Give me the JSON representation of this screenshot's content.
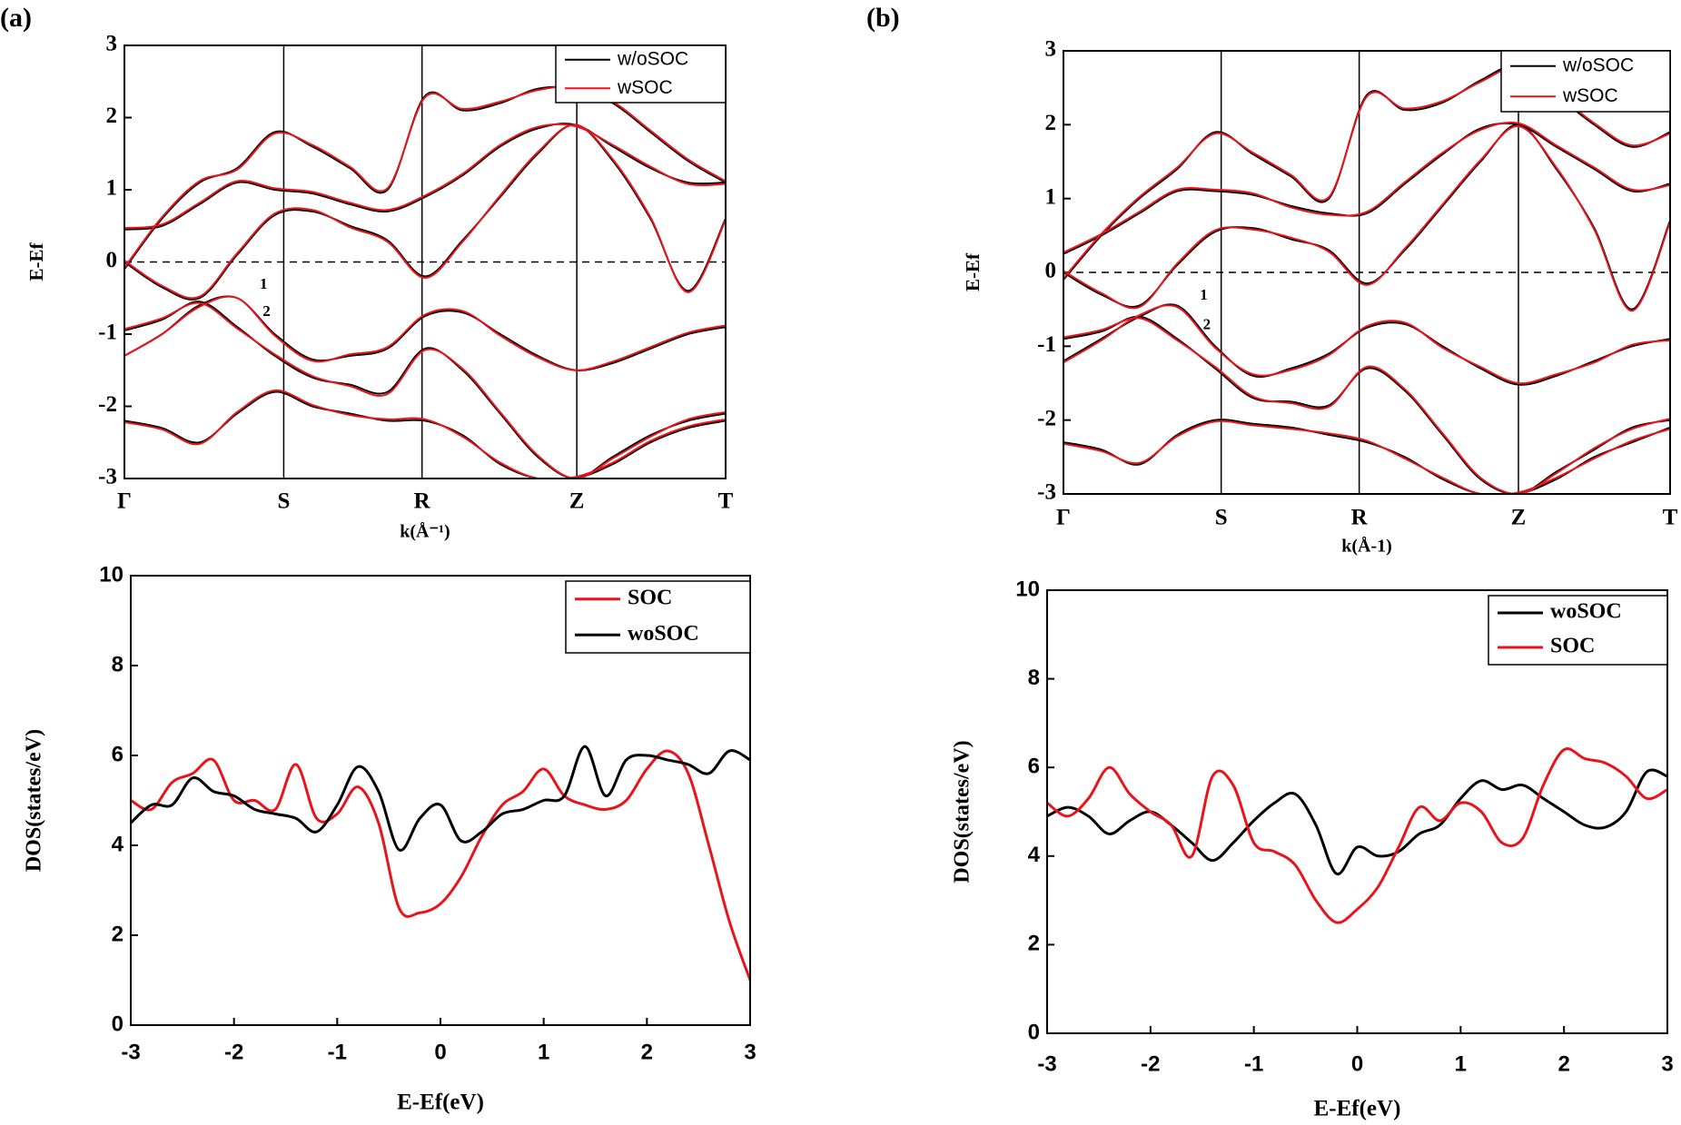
{
  "chart_data": [
    {
      "type": "band",
      "panel_label": "(a)",
      "xlabel": "k(Å⁻¹)",
      "ylabel": "E-Ef",
      "x": [
        0,
        0.25,
        0.5,
        0.75,
        1,
        1.25,
        1.5,
        1.75,
        2,
        2.25,
        2.5,
        2.75,
        3,
        3.25,
        3.5,
        3.75,
        4
      ],
      "xlim": [
        0,
        4
      ],
      "ylim": [
        -3,
        3
      ],
      "yticks": [
        -3,
        -2,
        -1,
        0,
        1,
        2,
        3
      ],
      "xticks": [
        {
          "value": 0,
          "label": "Γ"
        },
        {
          "value": 1.06,
          "label": "S"
        },
        {
          "value": 1.98,
          "label": "R"
        },
        {
          "value": 3.01,
          "label": "Z"
        },
        {
          "value": 4,
          "label": "T"
        }
      ],
      "grid": true,
      "reference_line": 0,
      "legend": "upper right",
      "annotations": [
        {
          "text": "1",
          "x": 0.9,
          "y": -0.32
        },
        {
          "text": "2",
          "x": 0.92,
          "y": -0.7
        }
      ],
      "series": [
        {
          "name": "w/oSOC",
          "color": "#000000",
          "bands": [
            [
              -1.3,
              -1.0,
              -0.6,
              -0.5,
              -1.0,
              -1.35,
              -1.3,
              -1.2,
              -0.75,
              -0.7,
              -1.0,
              -1.3,
              -1.5,
              -1.4,
              -1.2,
              -1.0,
              -0.9
            ],
            [
              -0.95,
              -0.8,
              -0.55,
              -0.9,
              -1.3,
              -1.6,
              -1.7,
              -1.8,
              -1.2,
              -1.5,
              -2.1,
              -2.7,
              -3.0,
              -2.7,
              -2.4,
              -2.2,
              -2.1
            ],
            [
              0.0,
              -0.35,
              -0.5,
              0.1,
              0.65,
              0.7,
              0.5,
              0.3,
              -0.2,
              0.3,
              0.9,
              1.5,
              1.9,
              1.4,
              0.6,
              -0.4,
              0.6
            ],
            [
              0.45,
              0.5,
              0.8,
              1.1,
              1.0,
              0.95,
              0.8,
              0.7,
              0.9,
              1.2,
              1.6,
              1.85,
              1.9,
              1.6,
              1.3,
              1.1,
              1.1
            ],
            [
              -0.1,
              0.6,
              1.1,
              1.3,
              1.8,
              1.6,
              1.3,
              1.0,
              2.3,
              2.1,
              2.2,
              2.4,
              2.4,
              2.2,
              1.8,
              1.4,
              1.1
            ],
            [
              -2.2,
              -2.3,
              -2.5,
              -2.1,
              -1.8,
              -2.0,
              -2.1,
              -2.2,
              -2.2,
              -2.4,
              -2.8,
              -3.0,
              -3.0,
              -2.8,
              -2.5,
              -2.3,
              -2.2
            ]
          ]
        },
        {
          "name": "wSOC",
          "color": "#e8141b",
          "bands": [
            [
              -1.3,
              -1.0,
              -0.62,
              -0.5,
              -1.02,
              -1.37,
              -1.28,
              -1.18,
              -0.73,
              -0.68,
              -1.02,
              -1.32,
              -1.5,
              -1.38,
              -1.18,
              -0.98,
              -0.88
            ],
            [
              -0.93,
              -0.78,
              -0.57,
              -0.92,
              -1.28,
              -1.58,
              -1.72,
              -1.83,
              -1.22,
              -1.48,
              -2.08,
              -2.68,
              -3.0,
              -2.72,
              -2.42,
              -2.18,
              -2.08
            ],
            [
              0.02,
              -0.33,
              -0.48,
              0.12,
              0.67,
              0.72,
              0.48,
              0.28,
              -0.22,
              0.28,
              0.92,
              1.52,
              1.9,
              1.42,
              0.62,
              -0.42,
              0.58
            ],
            [
              0.47,
              0.52,
              0.82,
              1.12,
              1.02,
              0.97,
              0.82,
              0.72,
              0.92,
              1.22,
              1.62,
              1.87,
              1.88,
              1.62,
              1.32,
              1.08,
              1.08
            ],
            [
              -0.08,
              0.62,
              1.12,
              1.28,
              1.78,
              1.62,
              1.32,
              1.02,
              2.28,
              2.12,
              2.22,
              2.38,
              2.42,
              2.22,
              1.82,
              1.42,
              1.12
            ],
            [
              -2.22,
              -2.32,
              -2.52,
              -2.08,
              -1.78,
              -1.98,
              -2.12,
              -2.18,
              -2.18,
              -2.42,
              -2.78,
              -3.0,
              -2.98,
              -2.78,
              -2.48,
              -2.28,
              -2.18
            ]
          ]
        }
      ]
    },
    {
      "type": "band",
      "panel_label": "(b)",
      "xlabel": "k(Å-1)",
      "ylabel": "E-Ef",
      "x": [
        0,
        0.25,
        0.5,
        0.75,
        1,
        1.25,
        1.5,
        1.75,
        2,
        2.25,
        2.5,
        2.75,
        3,
        3.25,
        3.5,
        3.75,
        4
      ],
      "xlim": [
        0,
        4
      ],
      "ylim": [
        -3,
        3
      ],
      "yticks": [
        -3,
        -2,
        -1,
        0,
        1,
        2,
        3
      ],
      "xticks": [
        {
          "value": 0,
          "label": "Γ"
        },
        {
          "value": 1.04,
          "label": "S"
        },
        {
          "value": 1.95,
          "label": "R"
        },
        {
          "value": 3.0,
          "label": "Z"
        },
        {
          "value": 4,
          "label": "T"
        }
      ],
      "grid": true,
      "reference_line": 0,
      "legend": "upper right",
      "annotations": [
        {
          "text": "1",
          "x": 0.9,
          "y": -0.32
        },
        {
          "text": "2",
          "x": 0.92,
          "y": -0.72
        }
      ],
      "series": [
        {
          "name": "w/oSOC",
          "color": "#000000",
          "bands": [
            [
              -1.2,
              -0.9,
              -0.6,
              -0.45,
              -1.0,
              -1.4,
              -1.3,
              -1.1,
              -0.75,
              -0.7,
              -1.0,
              -1.3,
              -1.52,
              -1.4,
              -1.2,
              -1.0,
              -0.9
            ],
            [
              -0.9,
              -0.8,
              -0.6,
              -0.9,
              -1.3,
              -1.7,
              -1.75,
              -1.8,
              -1.3,
              -1.6,
              -2.2,
              -2.8,
              -3.0,
              -2.7,
              -2.4,
              -2.1,
              -2.0
            ],
            [
              0.0,
              -0.3,
              -0.45,
              0.1,
              0.55,
              0.6,
              0.45,
              0.3,
              -0.15,
              0.3,
              0.9,
              1.5,
              2.0,
              1.4,
              0.6,
              -0.5,
              0.7
            ],
            [
              0.25,
              0.5,
              0.8,
              1.1,
              1.1,
              1.05,
              0.9,
              0.8,
              0.8,
              1.2,
              1.6,
              1.95,
              2.0,
              1.7,
              1.4,
              1.1,
              1.2
            ],
            [
              -0.1,
              0.5,
              1.0,
              1.4,
              1.9,
              1.6,
              1.3,
              1.0,
              2.4,
              2.2,
              2.3,
              2.6,
              2.8,
              2.4,
              2.0,
              1.7,
              1.9
            ],
            [
              -2.3,
              -2.4,
              -2.6,
              -2.2,
              -2.0,
              -2.05,
              -2.1,
              -2.2,
              -2.3,
              -2.5,
              -2.8,
              -3.0,
              -3.0,
              -2.8,
              -2.5,
              -2.3,
              -2.1
            ]
          ]
        },
        {
          "name": "wSOC",
          "color": "#e8141b",
          "bands": [
            [
              -1.22,
              -0.92,
              -0.58,
              -0.47,
              -1.02,
              -1.38,
              -1.32,
              -1.12,
              -0.73,
              -0.68,
              -1.02,
              -1.28,
              -1.5,
              -1.38,
              -1.22,
              -0.98,
              -0.92
            ],
            [
              -0.88,
              -0.78,
              -0.62,
              -0.92,
              -1.28,
              -1.68,
              -1.77,
              -1.82,
              -1.28,
              -1.58,
              -2.18,
              -2.78,
              -3.0,
              -2.72,
              -2.38,
              -2.12,
              -1.98
            ],
            [
              0.02,
              -0.28,
              -0.47,
              0.12,
              0.57,
              0.58,
              0.47,
              0.28,
              -0.17,
              0.32,
              0.92,
              1.52,
              1.98,
              1.42,
              0.58,
              -0.52,
              0.68
            ],
            [
              0.27,
              0.52,
              0.82,
              1.12,
              1.12,
              1.07,
              0.88,
              0.78,
              0.82,
              1.22,
              1.62,
              1.93,
              2.02,
              1.72,
              1.42,
              1.12,
              1.18
            ],
            [
              -0.08,
              0.52,
              1.02,
              1.42,
              1.88,
              1.62,
              1.32,
              1.02,
              2.38,
              2.22,
              2.32,
              2.58,
              2.78,
              2.42,
              2.02,
              1.72,
              1.88
            ],
            [
              -2.32,
              -2.42,
              -2.58,
              -2.22,
              -2.02,
              -2.07,
              -2.12,
              -2.18,
              -2.28,
              -2.52,
              -2.78,
              -3.0,
              -2.98,
              -2.78,
              -2.52,
              -2.28,
              -2.12
            ]
          ]
        }
      ]
    },
    {
      "type": "line",
      "xlabel": "E-Ef(eV)",
      "ylabel": "DOS(states/eV)",
      "x": [
        -3,
        -2.8,
        -2.6,
        -2.4,
        -2.2,
        -2,
        -1.8,
        -1.6,
        -1.4,
        -1.2,
        -1,
        -0.8,
        -0.6,
        -0.4,
        -0.2,
        0,
        0.2,
        0.4,
        0.6,
        0.8,
        1,
        1.2,
        1.4,
        1.6,
        1.8,
        2,
        2.2,
        2.4,
        2.6,
        2.8,
        3
      ],
      "xlim": [
        -3,
        3
      ],
      "ylim": [
        0,
        10
      ],
      "xticks": [
        -3,
        -2,
        -1,
        0,
        1,
        2,
        3
      ],
      "yticks": [
        0,
        2,
        4,
        6,
        8,
        10
      ],
      "legend": "upper right",
      "series": [
        {
          "name": "SOC",
          "color": "#e8141b",
          "values": [
            5.0,
            4.8,
            5.4,
            5.6,
            5.9,
            5.0,
            5.0,
            4.8,
            5.8,
            4.6,
            4.7,
            5.3,
            4.5,
            2.6,
            2.5,
            2.7,
            3.3,
            4.2,
            4.9,
            5.2,
            5.7,
            5.1,
            4.9,
            4.8,
            5.0,
            5.7,
            6.1,
            5.6,
            4.0,
            2.3,
            1.0
          ]
        },
        {
          "name": "woSOC",
          "color": "#000000",
          "values": [
            4.5,
            4.9,
            4.9,
            5.5,
            5.2,
            5.1,
            4.8,
            4.7,
            4.6,
            4.3,
            4.9,
            5.75,
            5.2,
            3.9,
            4.6,
            4.9,
            4.1,
            4.3,
            4.7,
            4.8,
            5.0,
            5.1,
            6.2,
            5.1,
            5.9,
            6.0,
            5.9,
            5.8,
            5.6,
            6.1,
            5.9
          ]
        }
      ]
    },
    {
      "type": "line",
      "xlabel": "E-Ef(eV)",
      "ylabel": "DOS(states/eV)",
      "x": [
        -3,
        -2.8,
        -2.6,
        -2.4,
        -2.2,
        -2,
        -1.8,
        -1.6,
        -1.4,
        -1.2,
        -1,
        -0.8,
        -0.6,
        -0.4,
        -0.2,
        0,
        0.2,
        0.4,
        0.6,
        0.8,
        1,
        1.2,
        1.4,
        1.6,
        1.8,
        2,
        2.2,
        2.4,
        2.6,
        2.8,
        3
      ],
      "xlim": [
        -3,
        3
      ],
      "ylim": [
        0,
        10
      ],
      "xticks": [
        -3,
        -2,
        -1,
        0,
        1,
        2,
        3
      ],
      "yticks": [
        0,
        2,
        4,
        6,
        8,
        10
      ],
      "legend": "upper right",
      "series": [
        {
          "name": "woSOC",
          "color": "#000000",
          "values": [
            4.9,
            5.1,
            4.9,
            4.5,
            4.8,
            5.0,
            4.7,
            4.3,
            3.9,
            4.3,
            4.8,
            5.2,
            5.4,
            4.7,
            3.6,
            4.2,
            4.0,
            4.1,
            4.5,
            4.7,
            5.3,
            5.7,
            5.5,
            5.6,
            5.3,
            5.0,
            4.7,
            4.65,
            5.0,
            5.9,
            5.8
          ]
        },
        {
          "name": "SOC",
          "color": "#e8141b",
          "values": [
            5.2,
            4.9,
            5.3,
            6.0,
            5.4,
            5.0,
            4.7,
            4.0,
            5.8,
            5.6,
            4.3,
            4.1,
            3.8,
            3.0,
            2.5,
            2.8,
            3.3,
            4.2,
            5.1,
            4.8,
            5.2,
            5.0,
            4.3,
            4.4,
            5.6,
            6.4,
            6.2,
            6.1,
            5.8,
            5.3,
            5.5
          ]
        }
      ]
    }
  ]
}
